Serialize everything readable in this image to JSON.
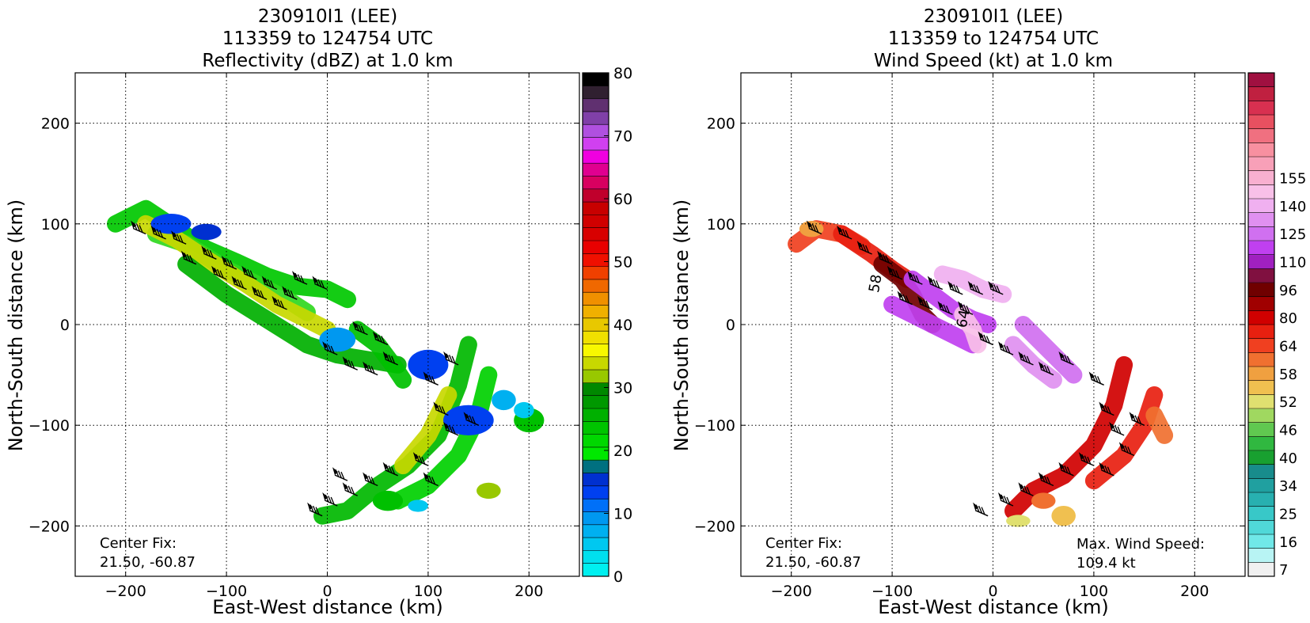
{
  "chart_data": [
    {
      "type": "heatmap",
      "title": [
        "230910I1 (LEE)",
        "113359 to 124754 UTC",
        "Reflectivity (dBZ) at 1.0 km"
      ],
      "xlabel": "East-West distance (km)",
      "ylabel": "North-South distance (km)",
      "xlim": [
        -250,
        250
      ],
      "ylim": [
        -250,
        250
      ],
      "xticks": [
        -200,
        -100,
        0,
        100,
        200
      ],
      "yticks": [
        -200,
        -100,
        0,
        100,
        200
      ],
      "xtick_labels": [
        "−200",
        "−100",
        "0",
        "100",
        "200"
      ],
      "ytick_labels": [
        "−200",
        "−100",
        "0",
        "100",
        "200"
      ],
      "grid": true,
      "annotation": [
        "Center Fix:",
        "21.50, -60.87"
      ],
      "colorbar": {
        "ticks": [
          0,
          10,
          20,
          30,
          40,
          50,
          60,
          70,
          80
        ],
        "colors": [
          "#00f0f0",
          "#00e0ee",
          "#00c8f0",
          "#00b0f0",
          "#0098f0",
          "#0070f8",
          "#0040f0",
          "#0030d0",
          "#007080",
          "#00e800",
          "#00d800",
          "#00c400",
          "#00b000",
          "#009800",
          "#008800",
          "#98c800",
          "#c8d800",
          "#f8f800",
          "#f0e000",
          "#e8c800",
          "#f0b000",
          "#f09000",
          "#f06800",
          "#f04000",
          "#f01000",
          "#e80000",
          "#d80000",
          "#d00000",
          "#c80000",
          "#c0002c",
          "#d80060",
          "#e00090",
          "#f000e0",
          "#d040f0",
          "#b050e0",
          "#8040a8",
          "#603070",
          "#302030",
          "#000000"
        ]
      },
      "echo_regions": [
        {
          "kind": "band",
          "points": [
            [
              -210,
              100
            ],
            [
              -180,
              115
            ],
            [
              -150,
              95
            ],
            [
              -120,
              75
            ],
            [
              -90,
              62
            ],
            [
              -60,
              48
            ],
            [
              -30,
              38
            ],
            [
              0,
              35
            ],
            [
              20,
              25
            ]
          ],
          "color": "#00c800"
        },
        {
          "kind": "band",
          "points": [
            [
              -170,
              90
            ],
            [
              -140,
              80
            ],
            [
              -100,
              55
            ],
            [
              -70,
              40
            ],
            [
              -40,
              25
            ],
            [
              -20,
              12
            ]
          ],
          "color": "#30d820"
        },
        {
          "kind": "band",
          "points": [
            [
              -180,
              100
            ],
            [
              -150,
              85
            ],
            [
              -120,
              65
            ],
            [
              -80,
              40
            ],
            [
              -50,
              20
            ],
            [
              -20,
              5
            ],
            [
              0,
              -5
            ]
          ],
          "color": "#c8d800"
        },
        {
          "kind": "band",
          "points": [
            [
              -140,
              60
            ],
            [
              -100,
              30
            ],
            [
              -60,
              5
            ],
            [
              -20,
              -20
            ],
            [
              10,
              -30
            ],
            [
              40,
              -35
            ],
            [
              70,
              -40
            ]
          ],
          "color": "#00b000"
        },
        {
          "kind": "band",
          "points": [
            [
              30,
              -5
            ],
            [
              50,
              -20
            ],
            [
              65,
              -40
            ],
            [
              75,
              -55
            ]
          ],
          "color": "#00c000"
        },
        {
          "kind": "band",
          "points": [
            [
              140,
              -20
            ],
            [
              130,
              -60
            ],
            [
              110,
              -110
            ],
            [
              80,
              -140
            ],
            [
              50,
              -160
            ],
            [
              20,
              -185
            ],
            [
              -5,
              -190
            ]
          ],
          "color": "#00b800"
        },
        {
          "kind": "band",
          "points": [
            [
              160,
              -50
            ],
            [
              150,
              -90
            ],
            [
              130,
              -130
            ],
            [
              100,
              -160
            ],
            [
              70,
              -175
            ]
          ],
          "color": "#00d000"
        },
        {
          "kind": "band",
          "points": [
            [
              120,
              -70
            ],
            [
              100,
              -110
            ],
            [
              75,
              -140
            ]
          ],
          "color": "#c8d800"
        },
        {
          "kind": "blob",
          "center": [
            100,
            -40
          ],
          "size": [
            20,
            15
          ],
          "color": "#0040f0"
        },
        {
          "kind": "blob",
          "center": [
            140,
            -95
          ],
          "size": [
            25,
            15
          ],
          "color": "#0040f0"
        },
        {
          "kind": "blob",
          "center": [
            200,
            -95
          ],
          "size": [
            15,
            12
          ],
          "color": "#00c000"
        },
        {
          "kind": "blob",
          "center": [
            195,
            -85
          ],
          "size": [
            10,
            8
          ],
          "color": "#00c8f0"
        },
        {
          "kind": "blob",
          "center": [
            -155,
            100
          ],
          "size": [
            20,
            10
          ],
          "color": "#0040f0"
        },
        {
          "kind": "blob",
          "center": [
            -120,
            92
          ],
          "size": [
            15,
            8
          ],
          "color": "#0030d0"
        },
        {
          "kind": "blob",
          "center": [
            10,
            -15
          ],
          "size": [
            18,
            12
          ],
          "color": "#0098f0"
        },
        {
          "kind": "blob",
          "center": [
            60,
            -175
          ],
          "size": [
            15,
            10
          ],
          "color": "#00c000"
        },
        {
          "kind": "blob",
          "center": [
            175,
            -75
          ],
          "size": [
            12,
            10
          ],
          "color": "#00b0f0"
        },
        {
          "kind": "blob",
          "center": [
            160,
            -165
          ],
          "size": [
            12,
            8
          ],
          "color": "#98c800"
        },
        {
          "kind": "blob",
          "center": [
            90,
            -180
          ],
          "size": [
            10,
            6
          ],
          "color": "#00c8f0"
        }
      ],
      "barbs": [
        [
          -180,
          90
        ],
        [
          -160,
          85
        ],
        [
          -140,
          80
        ],
        [
          -130,
          60
        ],
        [
          -110,
          65
        ],
        [
          -100,
          45
        ],
        [
          -90,
          55
        ],
        [
          -80,
          35
        ],
        [
          -70,
          45
        ],
        [
          -60,
          25
        ],
        [
          -50,
          35
        ],
        [
          -40,
          15
        ],
        [
          -30,
          25
        ],
        [
          -20,
          40
        ],
        [
          0,
          35
        ],
        [
          10,
          -30
        ],
        [
          30,
          -45
        ],
        [
          50,
          -50
        ],
        [
          70,
          -40
        ],
        [
          60,
          -20
        ],
        [
          40,
          -10
        ],
        [
          110,
          -60
        ],
        [
          120,
          -90
        ],
        [
          130,
          -110
        ],
        [
          100,
          -140
        ],
        [
          70,
          -150
        ],
        [
          50,
          -160
        ],
        [
          30,
          -170
        ],
        [
          10,
          -180
        ],
        [
          -5,
          -190
        ],
        [
          130,
          -40
        ],
        [
          150,
          -100
        ],
        [
          20,
          -155
        ],
        [
          110,
          -160
        ]
      ]
    },
    {
      "type": "heatmap",
      "title": [
        "230910I1 (LEE)",
        "113359 to 124754 UTC",
        "Wind Speed (kt) at 1.0 km"
      ],
      "xlabel": "East-West distance (km)",
      "ylabel": "North-South distance (km)",
      "xlim": [
        -250,
        250
      ],
      "ylim": [
        -250,
        250
      ],
      "xticks": [
        -200,
        -100,
        0,
        100,
        200
      ],
      "yticks": [
        -200,
        -100,
        0,
        100,
        200
      ],
      "xtick_labels": [
        "−200",
        "−100",
        "0",
        "100",
        "200"
      ],
      "ytick_labels": [
        "−200",
        "−100",
        "0",
        "100",
        "200"
      ],
      "grid": true,
      "annotation": [
        "Center Fix:",
        "21.50, -60.87"
      ],
      "annotation_right": [
        "Max. Wind Speed:",
        "109.4 kt"
      ],
      "colorbar": {
        "tick_labels": [
          "7",
          "16",
          "25",
          "34",
          "40",
          "46",
          "52",
          "58",
          "64",
          "80",
          "96",
          "110",
          "125",
          "140",
          "155"
        ],
        "tick_index": [
          0,
          2,
          4,
          6,
          8,
          10,
          12,
          14,
          16,
          18,
          20,
          22,
          24,
          26,
          28
        ],
        "colors": [
          "#f0f0f0",
          "#b8f4f4",
          "#70e8e8",
          "#50d8d8",
          "#38c8c8",
          "#28b0b0",
          "#20a0a0",
          "#188c8c",
          "#18a030",
          "#30b840",
          "#60c850",
          "#a0d860",
          "#e0e070",
          "#f0c050",
          "#f0a040",
          "#f07030",
          "#f04020",
          "#e82010",
          "#d00000",
          "#a00000",
          "#700000",
          "#801040",
          "#a020c0",
          "#c040f0",
          "#d070f0",
          "#e090f0",
          "#f0b0f0",
          "#f8c0e8",
          "#f8b0d0",
          "#f8a0b8",
          "#f890a0",
          "#f07080",
          "#e85060",
          "#d83050",
          "#c02040",
          "#a01040"
        ]
      },
      "wind_regions": [
        {
          "kind": "band",
          "points": [
            [
              -195,
              80
            ],
            [
              -175,
              95
            ],
            [
              -150,
              90
            ],
            [
              -130,
              78
            ]
          ],
          "color": "#f04020"
        },
        {
          "kind": "band",
          "points": [
            [
              -150,
              90
            ],
            [
              -120,
              70
            ],
            [
              -100,
              55
            ],
            [
              -85,
              45
            ]
          ],
          "color": "#e82010"
        },
        {
          "kind": "band",
          "points": [
            [
              -110,
              60
            ],
            [
              -90,
              45
            ],
            [
              -80,
              30
            ],
            [
              -70,
              10
            ],
            [
              -60,
              0
            ]
          ],
          "color": "#700000"
        },
        {
          "kind": "band",
          "points": [
            [
              -80,
              45
            ],
            [
              -60,
              30
            ],
            [
              -40,
              15
            ],
            [
              -20,
              5
            ],
            [
              -5,
              0
            ]
          ],
          "color": "#c040f0"
        },
        {
          "kind": "band",
          "points": [
            [
              -100,
              20
            ],
            [
              -70,
              5
            ],
            [
              -40,
              -10
            ],
            [
              -20,
              -20
            ]
          ],
          "color": "#c040f0"
        },
        {
          "kind": "band",
          "points": [
            [
              -50,
              50
            ],
            [
              -30,
              45
            ],
            [
              -10,
              35
            ],
            [
              10,
              30
            ]
          ],
          "color": "#f0b0f0"
        },
        {
          "kind": "band",
          "points": [
            [
              -30,
              10
            ],
            [
              -20,
              -5
            ],
            [
              -15,
              -20
            ]
          ],
          "color": "#f8c0e8"
        },
        {
          "kind": "band",
          "points": [
            [
              30,
              0
            ],
            [
              50,
              -20
            ],
            [
              70,
              -40
            ],
            [
              80,
              -50
            ]
          ],
          "color": "#d070f0"
        },
        {
          "kind": "band",
          "points": [
            [
              20,
              -20
            ],
            [
              40,
              -40
            ],
            [
              60,
              -55
            ]
          ],
          "color": "#e090f0"
        },
        {
          "kind": "band",
          "points": [
            [
              130,
              -40
            ],
            [
              120,
              -80
            ],
            [
              100,
              -120
            ],
            [
              70,
              -150
            ],
            [
              40,
              -165
            ],
            [
              20,
              -185
            ]
          ],
          "color": "#d00000"
        },
        {
          "kind": "band",
          "points": [
            [
              160,
              -70
            ],
            [
              150,
              -100
            ],
            [
              130,
              -130
            ],
            [
              100,
              -155
            ]
          ],
          "color": "#e82010"
        },
        {
          "kind": "band",
          "points": [
            [
              160,
              -90
            ],
            [
              170,
              -110
            ]
          ],
          "color": "#f07030"
        },
        {
          "kind": "blob",
          "center": [
            25,
            -195
          ],
          "size": [
            12,
            6
          ],
          "color": "#e0e070"
        },
        {
          "kind": "blob",
          "center": [
            70,
            -190
          ],
          "size": [
            12,
            10
          ],
          "color": "#f0c050"
        },
        {
          "kind": "blob",
          "center": [
            -180,
            95
          ],
          "size": [
            12,
            8
          ],
          "color": "#f0a040"
        },
        {
          "kind": "blob",
          "center": [
            50,
            -175
          ],
          "size": [
            12,
            8
          ],
          "color": "#f07030"
        }
      ],
      "contour_labels": [
        {
          "text": "64",
          "x": -25,
          "y": 5,
          "rotate": -80
        },
        {
          "text": "58",
          "x": -112,
          "y": 40,
          "rotate": -80
        }
      ],
      "barbs": [
        [
          -170,
          90
        ],
        [
          -140,
          85
        ],
        [
          -120,
          70
        ],
        [
          -100,
          60
        ],
        [
          -90,
          45
        ],
        [
          -70,
          40
        ],
        [
          -50,
          35
        ],
        [
          -30,
          30
        ],
        [
          -10,
          30
        ],
        [
          10,
          30
        ],
        [
          -80,
          20
        ],
        [
          -60,
          15
        ],
        [
          -40,
          10
        ],
        [
          -20,
          10
        ],
        [
          0,
          -20
        ],
        [
          20,
          -30
        ],
        [
          40,
          -40
        ],
        [
          60,
          -50
        ],
        [
          80,
          -40
        ],
        [
          110,
          -60
        ],
        [
          120,
          -90
        ],
        [
          130,
          -110
        ],
        [
          140,
          -130
        ],
        [
          100,
          -140
        ],
        [
          80,
          -150
        ],
        [
          60,
          -160
        ],
        [
          40,
          -170
        ],
        [
          20,
          -180
        ],
        [
          -5,
          -190
        ],
        [
          150,
          -100
        ],
        [
          120,
          -150
        ]
      ]
    }
  ]
}
